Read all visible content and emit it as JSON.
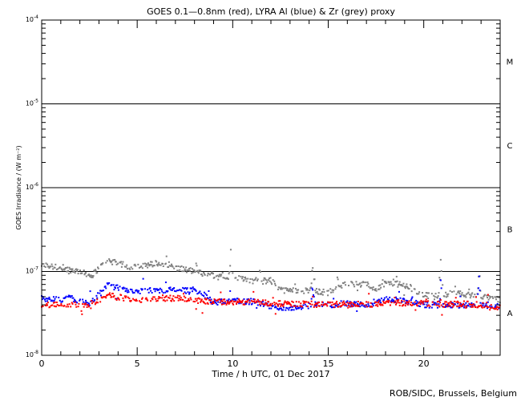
{
  "chart_data": {
    "type": "scatter",
    "title": "GOES 0.1—0.8nm (red), LYRA Al (blue) & Zr (grey) proxy",
    "xlabel": "Time / h UTC, 01 Dec 2017",
    "ylabel": "GOES Irradiance / (W m⁻²)",
    "credit": "ROB/SIDC, Brussels, Belgium",
    "xlim": [
      0,
      24
    ],
    "ylim": [
      1e-08,
      0.0001
    ],
    "yscale": "log",
    "x_ticks": [
      "0",
      "5",
      "10",
      "15",
      "20"
    ],
    "y_ticks": [
      {
        "base": "10",
        "exp": "-8",
        "value": 1e-08
      },
      {
        "base": "10",
        "exp": "-7",
        "value": 1e-07
      },
      {
        "base": "10",
        "exp": "-6",
        "value": 1e-06
      },
      {
        "base": "10",
        "exp": "-5",
        "value": 1e-05
      },
      {
        "base": "10",
        "exp": "-4",
        "value": 0.0001
      }
    ],
    "class_thresholds": [
      1e-07,
      1e-06,
      1e-05
    ],
    "classes": [
      {
        "label": "A",
        "value": 3.2e-08
      },
      {
        "label": "B",
        "value": 3.2e-07
      },
      {
        "label": "C",
        "value": 3.2e-06
      },
      {
        "label": "M",
        "value": 3.2e-05
      }
    ],
    "series": [
      {
        "name": "LYRA Zr proxy",
        "color": "#808080",
        "baseline": [
          [
            0,
            1.2e-07
          ],
          [
            1,
            1.1e-07
          ],
          [
            2,
            1e-07
          ],
          [
            2.6,
            8.8e-08
          ],
          [
            3,
            1.1e-07
          ],
          [
            3.5,
            1.35e-07
          ],
          [
            4.2,
            1.2e-07
          ],
          [
            4.6,
            1.1e-07
          ],
          [
            5.5,
            1.2e-07
          ],
          [
            6.5,
            1.25e-07
          ],
          [
            7,
            1.1e-07
          ],
          [
            8,
            1e-07
          ],
          [
            8.5,
            9.3e-08
          ],
          [
            9.5,
            9e-08
          ],
          [
            10.3,
            8.3e-08
          ],
          [
            11,
            7.5e-08
          ],
          [
            12,
            7.8e-08
          ],
          [
            12.5,
            6e-08
          ],
          [
            13.5,
            5.9e-08
          ],
          [
            14.3,
            5.8e-08
          ],
          [
            15,
            5.6e-08
          ],
          [
            16,
            7.2e-08
          ],
          [
            17,
            7e-08
          ],
          [
            17.5,
            6.2e-08
          ],
          [
            18,
            7.3e-08
          ],
          [
            19,
            6.8e-08
          ],
          [
            19.7,
            5.5e-08
          ],
          [
            20.5,
            5e-08
          ],
          [
            21.5,
            5.5e-08
          ],
          [
            22.3,
            5.3e-08
          ],
          [
            23,
            5e-08
          ],
          [
            24,
            4.6e-08
          ]
        ],
        "flares": [
          [
            8.1,
            1.45e-07
          ],
          [
            9.9,
            1.9e-07
          ],
          [
            11.4,
            1.5e-07
          ],
          [
            14.2,
            1.6e-07
          ],
          [
            15.5,
            1e-07
          ],
          [
            18.6,
            1.1e-07
          ],
          [
            19.3,
            1e-07
          ],
          [
            20.9,
            1.5e-07
          ],
          [
            22.9,
            1.15e-07
          ]
        ]
      },
      {
        "name": "LYRA Al proxy",
        "color": "#0000ff",
        "baseline": [
          [
            0,
            4.8e-08
          ],
          [
            1,
            4.6e-08
          ],
          [
            1.5,
            4.9e-08
          ],
          [
            2,
            4.4e-08
          ],
          [
            2.6,
            4.2e-08
          ],
          [
            3,
            5.3e-08
          ],
          [
            3.5,
            7e-08
          ],
          [
            4,
            6.3e-08
          ],
          [
            4.4,
            5.8e-08
          ],
          [
            5.5,
            5.9e-08
          ],
          [
            6.5,
            6e-08
          ],
          [
            7.5,
            5.9e-08
          ],
          [
            8.3,
            5.7e-08
          ],
          [
            9,
            4.3e-08
          ],
          [
            10,
            4.4e-08
          ],
          [
            11,
            4.4e-08
          ],
          [
            12,
            3.8e-08
          ],
          [
            13.5,
            3.7e-08
          ],
          [
            14.2,
            4e-08
          ],
          [
            15,
            4e-08
          ],
          [
            16,
            4.1e-08
          ],
          [
            17,
            4e-08
          ],
          [
            17.7,
            4.4e-08
          ],
          [
            18.3,
            4.7e-08
          ],
          [
            19,
            4.4e-08
          ],
          [
            20,
            4e-08
          ],
          [
            21,
            4e-08
          ],
          [
            22,
            3.9e-08
          ],
          [
            23,
            4e-08
          ],
          [
            24,
            3.8e-08
          ]
        ],
        "flares": [
          [
            7.9,
            7.5e-08
          ],
          [
            10,
            6.5e-08
          ],
          [
            14.2,
            8.5e-08
          ],
          [
            18.7,
            6.5e-08
          ],
          [
            19.4,
            6e-08
          ],
          [
            20.9,
            9e-08
          ],
          [
            22.9,
            9e-08
          ]
        ]
      },
      {
        "name": "GOES 0.1-0.8nm",
        "color": "#ff0000",
        "baseline": [
          [
            0,
            4e-08
          ],
          [
            1,
            4.1e-08
          ],
          [
            2,
            4e-08
          ],
          [
            2.6,
            3.9e-08
          ],
          [
            3,
            4.5e-08
          ],
          [
            3.5,
            5.2e-08
          ],
          [
            4,
            4.9e-08
          ],
          [
            5,
            4.6e-08
          ],
          [
            6,
            4.8e-08
          ],
          [
            7,
            4.8e-08
          ],
          [
            8,
            4.5e-08
          ],
          [
            9,
            4.4e-08
          ],
          [
            10,
            4.3e-08
          ],
          [
            11,
            4.4e-08
          ],
          [
            12,
            4.2e-08
          ],
          [
            13,
            4.1e-08
          ],
          [
            14,
            4.1e-08
          ],
          [
            15,
            4e-08
          ],
          [
            16,
            4.1e-08
          ],
          [
            17,
            4e-08
          ],
          [
            18,
            4.3e-08
          ],
          [
            19,
            4.2e-08
          ],
          [
            20,
            4.2e-08
          ],
          [
            21,
            4e-08
          ],
          [
            22,
            4.1e-08
          ],
          [
            23,
            4e-08
          ],
          [
            24,
            3.8e-08
          ]
        ],
        "flares": [
          [
            14.2,
            6.5e-08
          ],
          [
            20.9,
            5.5e-08
          ]
        ]
      }
    ]
  }
}
